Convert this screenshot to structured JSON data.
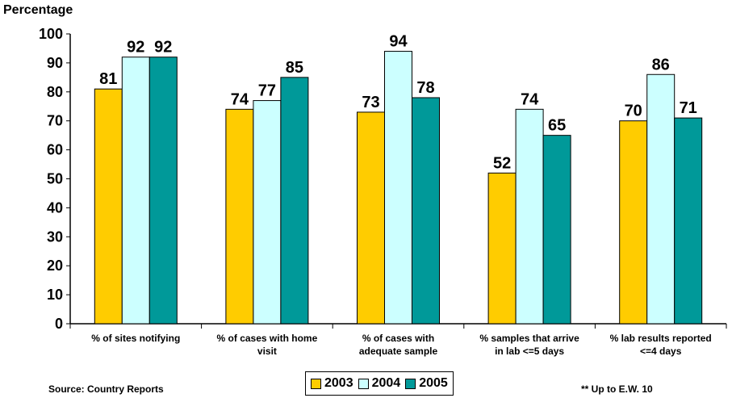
{
  "chart_data": {
    "type": "bar",
    "title": "",
    "ylabel": "Percentage",
    "xlabel": "",
    "ylim": [
      0,
      100
    ],
    "yticks": [
      0,
      10,
      20,
      30,
      40,
      50,
      60,
      70,
      80,
      90,
      100
    ],
    "grid": false,
    "legend_position": "bottom",
    "categories": [
      [
        "% of sites notifying"
      ],
      [
        "% of cases with home",
        "visit"
      ],
      [
        "% of cases with",
        "adequate sample"
      ],
      [
        "% samples that arrive",
        "in lab <=5 days"
      ],
      [
        "% lab results reported",
        "<=4 days"
      ]
    ],
    "series": [
      {
        "name": "2003",
        "color": "#FFCC00",
        "values": [
          81,
          74,
          73,
          52,
          70
        ]
      },
      {
        "name": "2004",
        "color": "#CCFFFF",
        "values": [
          92,
          77,
          94,
          74,
          86
        ]
      },
      {
        "name": "2005",
        "color": "#009999",
        "values": [
          92,
          85,
          78,
          65,
          71
        ]
      }
    ]
  },
  "source_text": "Source: Country Reports",
  "footnote_text": "** Up to E.W. 10"
}
